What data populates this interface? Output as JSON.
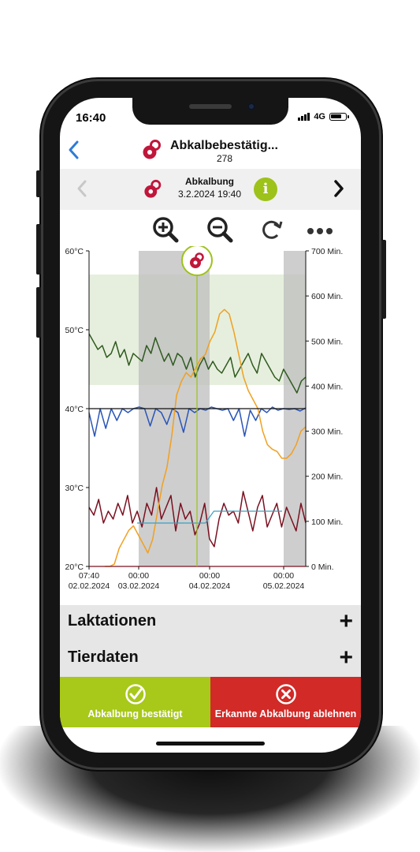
{
  "status": {
    "time": "16:40",
    "network": "4G"
  },
  "nav": {
    "back_icon": "chevron-left-icon",
    "title": "Abkalbebestätig...",
    "subtitle": "278"
  },
  "event": {
    "label": "Abkalbung",
    "datetime": "3.2.2024 19:40",
    "info_label": "i"
  },
  "toolbar": {
    "icons": [
      "zoom-in-icon",
      "zoom-out-icon",
      "refresh-icon",
      "more-icon"
    ]
  },
  "sections": [
    {
      "label": "Laktationen",
      "action": "+"
    },
    {
      "label": "Tierdaten",
      "action": "+"
    }
  ],
  "actions": {
    "confirm_label": "Abkalbung bestätigt",
    "reject_label": "Erkannte Abkalbung ablehnen"
  },
  "colors": {
    "accent_green": "#a8c81a",
    "reject_red": "#d12a27",
    "activity_orange": "#f0a020",
    "temp_green": "#2f5a1f",
    "temp_blue": "#2a55b8",
    "temp_red": "#7a1020",
    "pacifier_red": "#c0163a"
  },
  "chart_data": {
    "type": "line",
    "left_axis": {
      "label": "",
      "ticks": [
        "60°C",
        "50°C",
        "40°C",
        "30°C",
        "20°C"
      ],
      "range": [
        20,
        60
      ]
    },
    "right_axis": {
      "label": "",
      "ticks": [
        "700 Min.",
        "600 Min.",
        "500 Min.",
        "400 Min.",
        "300 Min.",
        "200 Min.",
        "100 Min.",
        "0 Min."
      ],
      "range": [
        0,
        700
      ]
    },
    "x_ticks": [
      {
        "time": "07:40",
        "date": "02.02.2024"
      },
      {
        "time": "00:00",
        "date": "03.02.2024"
      },
      {
        "time": "00:00",
        "date": "04.02.2024"
      },
      {
        "time": "00:00",
        "date": "05.02.2024"
      }
    ],
    "event_marker": "3.2.2024 19:40",
    "series": [
      {
        "color": "#2f5a1f",
        "values": [
          49.5,
          48.5,
          47.5,
          48,
          46.5,
          47,
          48.5,
          46.5,
          47.5,
          45.5,
          47,
          46.5,
          46,
          48,
          47,
          49,
          47.5,
          46,
          47,
          45.5,
          47,
          46.5,
          45,
          46.5,
          44,
          45.5,
          46.5,
          45,
          46,
          45,
          44.5,
          45.5,
          46.5,
          44,
          45,
          46,
          47,
          45.5,
          44.5,
          47,
          46,
          45,
          44,
          43.5,
          45,
          44,
          43,
          42,
          43.5,
          44
        ]
      },
      {
        "color": "#2a55b8",
        "values": [
          39.5,
          36.5,
          40,
          37.5,
          40,
          38.5,
          40,
          39.5,
          40,
          40.2,
          40,
          37.8,
          40,
          39.5,
          38,
          40,
          39.5,
          37,
          40,
          39.5,
          40,
          39.8,
          40.2,
          40,
          39.8,
          40,
          38.5,
          40,
          36.5,
          39.8,
          38.5,
          40,
          39.5,
          40.2,
          39.8,
          40,
          39.9,
          40,
          39.7,
          40.1
        ]
      },
      {
        "color": "#7a1020",
        "values": [
          27.5,
          26.5,
          28.5,
          25.5,
          27,
          26,
          28,
          26.5,
          29,
          25.5,
          27,
          25,
          28,
          26.5,
          30,
          26,
          27.5,
          29,
          24.5,
          28,
          26,
          27,
          24,
          25.5,
          28,
          23.5,
          22.5,
          26,
          28,
          26.5,
          27,
          25.5,
          29.5,
          27,
          24.5,
          27.5,
          29,
          25,
          26.5,
          28,
          25,
          27.5,
          26,
          24.5,
          28,
          25.5
        ]
      },
      {
        "color": "#f0a020",
        "values": [
          0,
          0,
          5,
          40,
          60,
          80,
          90,
          70,
          50,
          30,
          60,
          120,
          180,
          220,
          290,
          380,
          410,
          430,
          420,
          440,
          460,
          470,
          500,
          520,
          560,
          570,
          560,
          520,
          470,
          420,
          390,
          370,
          350,
          300,
          270,
          260,
          255,
          240,
          240,
          250,
          270,
          300,
          310
        ]
      },
      {
        "color": "#3aa0c0",
        "values": [
          25.5,
          25.5,
          25.5,
          25.5,
          25.5,
          25.5,
          25.5,
          25.5,
          25.5,
          27,
          27,
          27,
          27,
          27,
          27,
          27,
          27,
          27
        ]
      }
    ]
  }
}
